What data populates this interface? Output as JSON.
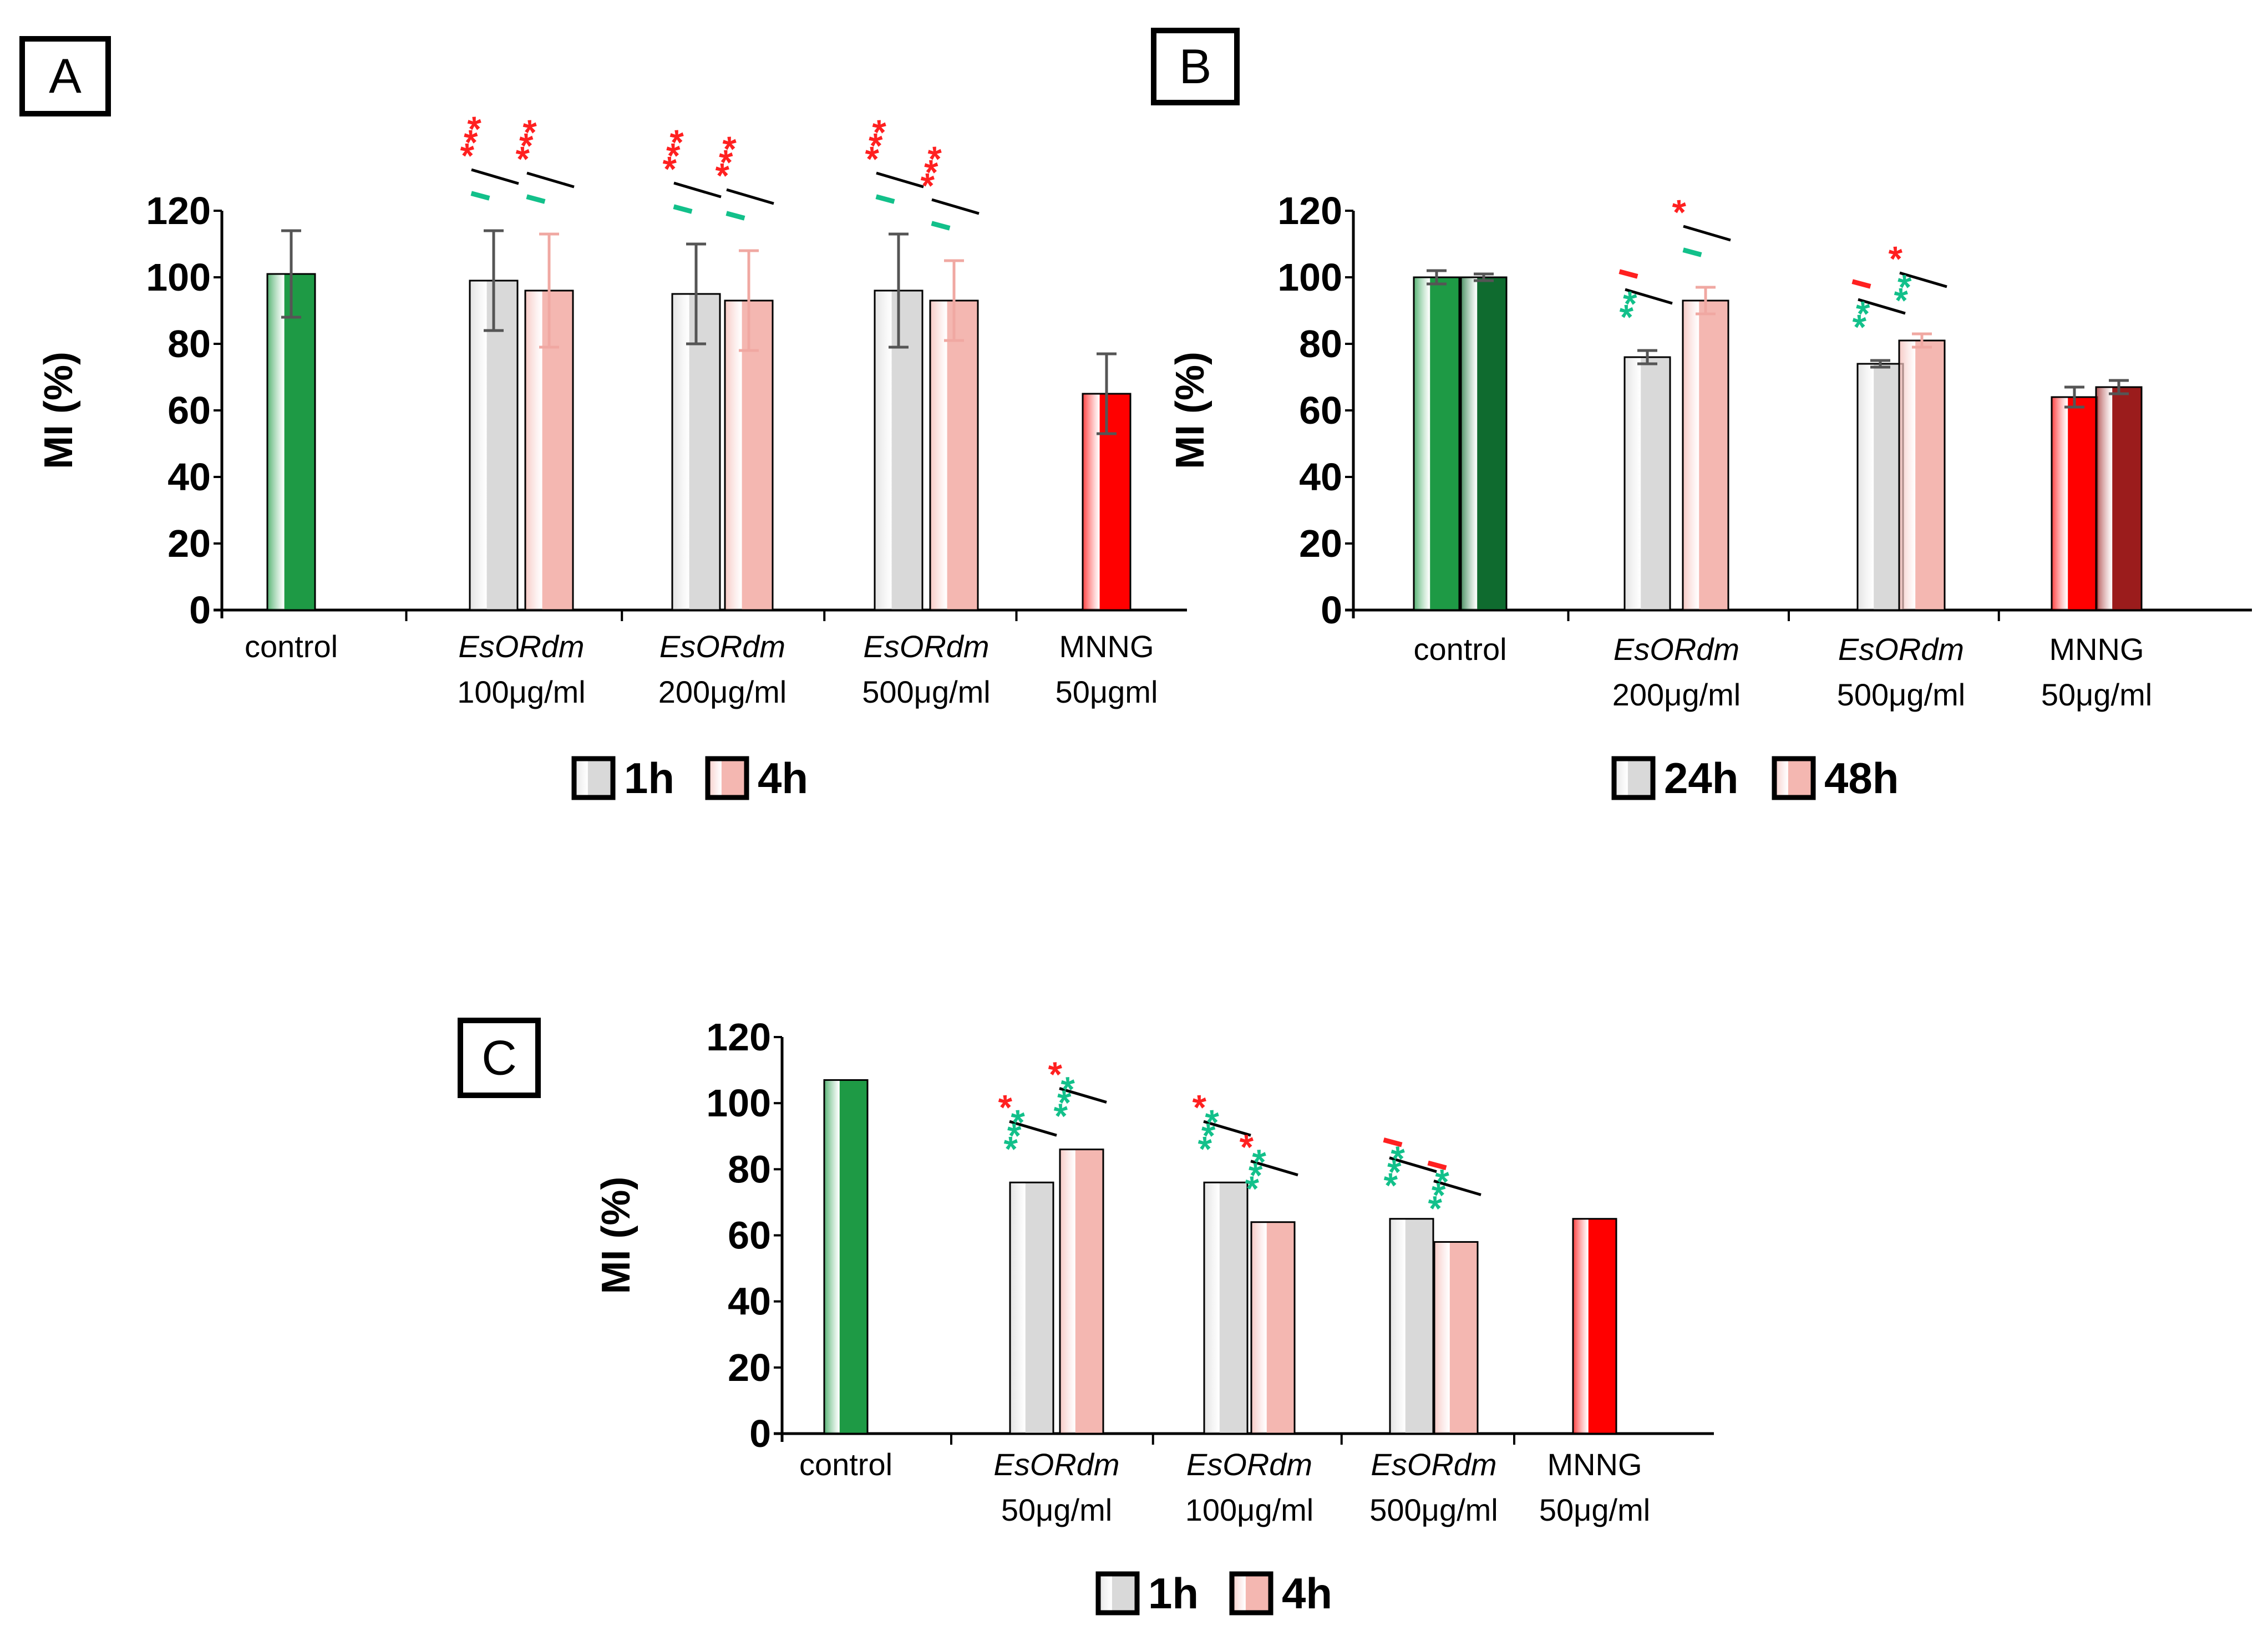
{
  "colors": {
    "control_green": "#1e9a45",
    "control_dark_green": "#0f6b2f",
    "mnng_red": "#ff0000",
    "mnng_dark_red": "#9b1c1c",
    "gray_bar": "#d9d9d9",
    "pink_bar": "#f4b7b1",
    "sig_red": "#ff2020",
    "sig_green": "#12c08a"
  },
  "chart_data": [
    {
      "type": "bar",
      "panel": "A",
      "ylabel": "MI (%)",
      "ylim": [
        0,
        120
      ],
      "yticks": [
        0,
        20,
        40,
        60,
        80,
        100,
        120
      ],
      "grid": false,
      "legend_position": "bottom",
      "categories": [
        {
          "lines": [
            "control"
          ],
          "italic_first": false
        },
        {
          "lines": [
            "EsORdm",
            "100μg/ml"
          ],
          "italic_first": true
        },
        {
          "lines": [
            "EsORdm",
            "200μg/ml"
          ],
          "italic_first": true
        },
        {
          "lines": [
            "EsORdm",
            "500μg/ml"
          ],
          "italic_first": true
        },
        {
          "lines": [
            "MNNG",
            "50μgml"
          ],
          "italic_first": false
        }
      ],
      "legend": [
        {
          "label": "1h",
          "color": "#d9d9d9"
        },
        {
          "label": "4h",
          "color": "#f4b7b1"
        }
      ],
      "bars": [
        {
          "category": 0,
          "value": 101,
          "error": 13,
          "color": "#1e9a45",
          "single": true
        },
        {
          "category": 1,
          "series": "1h",
          "value": 99,
          "error": 15,
          "color": "#d9d9d9"
        },
        {
          "category": 1,
          "series": "4h",
          "value": 96,
          "error": 17,
          "color": "#f4b7b1"
        },
        {
          "category": 2,
          "series": "1h",
          "value": 95,
          "error": 15,
          "color": "#d9d9d9"
        },
        {
          "category": 2,
          "series": "4h",
          "value": 93,
          "error": 15,
          "color": "#f4b7b1"
        },
        {
          "category": 3,
          "series": "1h",
          "value": 96,
          "error": 17,
          "color": "#d9d9d9"
        },
        {
          "category": 3,
          "series": "4h",
          "value": 93,
          "error": 12,
          "color": "#f4b7b1"
        },
        {
          "category": 4,
          "value": 65,
          "error": 12,
          "color": "#ff0000",
          "single": true
        }
      ],
      "annotations": [
        {
          "bar": 1,
          "red": "***",
          "green": "ı"
        },
        {
          "bar": 2,
          "red": "***",
          "green": "ı"
        },
        {
          "bar": 3,
          "red": "***",
          "green": "ı"
        },
        {
          "bar": 4,
          "red": "***",
          "green": "ı"
        },
        {
          "bar": 5,
          "red": "***",
          "green": "ı"
        },
        {
          "bar": 6,
          "red": "***",
          "green": "ı"
        }
      ]
    },
    {
      "type": "bar",
      "panel": "B",
      "ylabel": "MI (%)",
      "ylim": [
        0,
        120
      ],
      "yticks": [
        0,
        20,
        40,
        60,
        80,
        100,
        120
      ],
      "grid": false,
      "legend_position": "bottom",
      "categories": [
        {
          "lines": [
            "control"
          ],
          "italic_first": false
        },
        {
          "lines": [
            "EsORdm",
            "200μg/ml"
          ],
          "italic_first": true
        },
        {
          "lines": [
            "EsORdm",
            "500μg/ml"
          ],
          "italic_first": true
        },
        {
          "lines": [
            "MNNG",
            "50μg/ml"
          ],
          "italic_first": false
        }
      ],
      "legend": [
        {
          "label": "24h",
          "color": "#d9d9d9"
        },
        {
          "label": "48h",
          "color": "#f4b7b1"
        }
      ],
      "bars": [
        {
          "category": 0,
          "series": "24h",
          "value": 100,
          "error": 2,
          "color": "#1e9a45"
        },
        {
          "category": 0,
          "series": "48h",
          "value": 100,
          "error": 1,
          "color": "#0f6b2f"
        },
        {
          "category": 1,
          "series": "24h",
          "value": 76,
          "error": 2,
          "color": "#d9d9d9"
        },
        {
          "category": 1,
          "series": "48h",
          "value": 93,
          "error": 4,
          "color": "#f4b7b1"
        },
        {
          "category": 2,
          "series": "24h",
          "value": 74,
          "error": 1,
          "color": "#d9d9d9"
        },
        {
          "category": 2,
          "series": "48h",
          "value": 81,
          "error": 2,
          "color": "#f4b7b1"
        },
        {
          "category": 3,
          "series": "24h",
          "value": 64,
          "error": 3,
          "color": "#ff0000"
        },
        {
          "category": 3,
          "series": "48h",
          "value": 67,
          "error": 2,
          "color": "#9b1c1c"
        }
      ],
      "annotations": [
        {
          "bar": 2,
          "red": "ı",
          "green": "**"
        },
        {
          "bar": 3,
          "red": "*",
          "green": "ı"
        },
        {
          "bar": 4,
          "red": "ı",
          "green": "**"
        },
        {
          "bar": 5,
          "red": "*",
          "green": "**"
        }
      ]
    },
    {
      "type": "bar",
      "panel": "C",
      "ylabel": "MI (%)",
      "ylim": [
        0,
        120
      ],
      "yticks": [
        0,
        20,
        40,
        60,
        80,
        100,
        120
      ],
      "grid": false,
      "legend_position": "bottom",
      "categories": [
        {
          "lines": [
            "control"
          ],
          "italic_first": false
        },
        {
          "lines": [
            "EsORdm",
            "50μg/ml"
          ],
          "italic_first": true
        },
        {
          "lines": [
            "EsORdm",
            "100μg/ml"
          ],
          "italic_first": true
        },
        {
          "lines": [
            "EsORdm",
            "500μg/ml"
          ],
          "italic_first": true
        },
        {
          "lines": [
            "MNNG",
            "50μg/ml"
          ],
          "italic_first": false
        }
      ],
      "legend": [
        {
          "label": "1h",
          "color": "#d9d9d9"
        },
        {
          "label": "4h",
          "color": "#f4b7b1"
        }
      ],
      "bars": [
        {
          "category": 0,
          "value": 107,
          "color": "#1e9a45",
          "single": true
        },
        {
          "category": 1,
          "series": "1h",
          "value": 76,
          "color": "#d9d9d9"
        },
        {
          "category": 1,
          "series": "4h",
          "value": 86,
          "color": "#f4b7b1"
        },
        {
          "category": 2,
          "series": "1h",
          "value": 76,
          "color": "#d9d9d9"
        },
        {
          "category": 2,
          "series": "4h",
          "value": 64,
          "color": "#f4b7b1"
        },
        {
          "category": 3,
          "series": "1h",
          "value": 65,
          "color": "#d9d9d9"
        },
        {
          "category": 3,
          "series": "4h",
          "value": 58,
          "color": "#f4b7b1"
        },
        {
          "category": 4,
          "value": 65,
          "color": "#ff0000",
          "single": true
        }
      ],
      "annotations": [
        {
          "bar": 1,
          "red": "*",
          "green": "***"
        },
        {
          "bar": 2,
          "red": "*",
          "green": "***"
        },
        {
          "bar": 3,
          "red": "*",
          "green": "***"
        },
        {
          "bar": 4,
          "red": "*",
          "green": "***"
        },
        {
          "bar": 5,
          "red": "ı",
          "green": "***"
        },
        {
          "bar": 6,
          "red": "ı",
          "green": "***"
        }
      ]
    }
  ]
}
